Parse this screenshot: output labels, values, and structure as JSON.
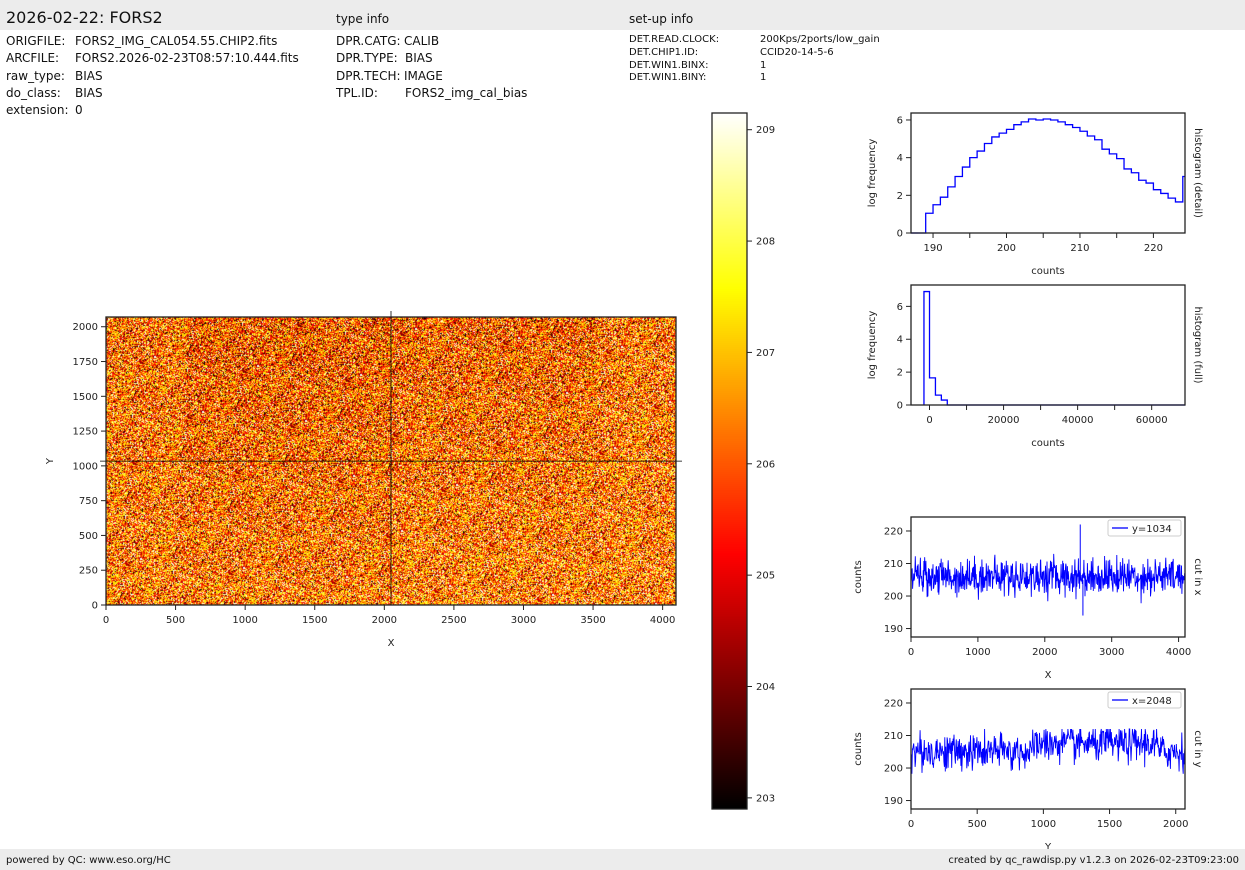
{
  "header": {
    "title": "2026-02-22: FORS2",
    "type_info_label": "type info",
    "setup_info_label": "set-up info"
  },
  "file_info": [
    {
      "key": "ORIGFILE:",
      "value": "FORS2_IMG_CAL054.55.CHIP2.fits"
    },
    {
      "key": "ARCFILE:",
      "value": "FORS2.2026-02-23T08:57:10.444.fits"
    },
    {
      "key": "raw_type:",
      "value": "BIAS"
    },
    {
      "key": "do_class:",
      "value": "BIAS"
    },
    {
      "key": "extension:",
      "value": "0"
    }
  ],
  "type_info": [
    {
      "key": "DPR.CATG:",
      "value": "CALIB"
    },
    {
      "key": "DPR.TYPE:",
      "value": "BIAS"
    },
    {
      "key": "DPR.TECH:",
      "value": "IMAGE"
    },
    {
      "key": "TPL.ID:",
      "value": "FORS2_img_cal_bias"
    }
  ],
  "setup_info": [
    {
      "key": "DET.READ.CLOCK:",
      "value": "200Kps/2ports/low_gain"
    },
    {
      "key": "DET.CHIP1.ID:",
      "value": "CCID20-14-5-6"
    },
    {
      "key": "DET.WIN1.BINX:",
      "value": "1"
    },
    {
      "key": "DET.WIN1.BINY:",
      "value": "1"
    }
  ],
  "footer": {
    "left": "powered by QC: www.eso.org/HC",
    "right": "created by qc_rawdisp.py v1.2.3 on 2026-02-23T09:23:00"
  },
  "colors": {
    "line": "#0000ff",
    "header_bg": "#ececec"
  },
  "chart_data": [
    {
      "type": "heatmap",
      "id": "image",
      "xlabel": "X",
      "ylabel": "Y",
      "xlim": [
        0,
        4096
      ],
      "ylim": [
        0,
        2070
      ],
      "xticks": [
        "0",
        "500",
        "1000",
        "1500",
        "2000",
        "2500",
        "3000",
        "3500",
        "4000"
      ],
      "yticks": [
        "0",
        "250",
        "500",
        "750",
        "1000",
        "1250",
        "1500",
        "1750",
        "2000"
      ],
      "colormap": "hot",
      "crosshair": {
        "x": 2048,
        "y": 1034
      }
    },
    {
      "type": "colorbar",
      "id": "colorbar",
      "range": [
        202.9,
        209.15
      ],
      "ticks": [
        "203",
        "204",
        "205",
        "206",
        "207",
        "208",
        "209"
      ],
      "colormap": "hot"
    },
    {
      "type": "line",
      "id": "hist_detail",
      "title_right": "histogram (detail)",
      "xlabel": "counts",
      "ylabel": "log frequency",
      "xlim": [
        187,
        224.3
      ],
      "ylim": [
        0,
        6.37
      ],
      "xticks": [
        "190",
        "200",
        "210",
        "220"
      ],
      "yticks": [
        "0",
        "2",
        "4",
        "6"
      ],
      "step": true,
      "x": [
        188,
        189,
        190,
        191,
        192,
        193,
        194,
        195,
        196,
        197,
        198,
        199,
        200,
        201,
        202,
        203,
        204,
        205,
        206,
        207,
        208,
        209,
        210,
        211,
        212,
        213,
        214,
        215,
        216,
        217,
        218,
        219,
        220,
        221,
        222,
        223,
        224
      ],
      "y": [
        0,
        1.05,
        1.5,
        1.9,
        2.45,
        3.0,
        3.5,
        4.0,
        4.35,
        4.75,
        5.1,
        5.3,
        5.5,
        5.75,
        5.9,
        6.05,
        6.0,
        6.05,
        6.0,
        5.9,
        5.75,
        5.6,
        5.4,
        5.15,
        4.95,
        4.45,
        4.2,
        3.95,
        3.4,
        3.2,
        2.8,
        2.65,
        2.3,
        2.1,
        1.85,
        1.65,
        3.0
      ]
    },
    {
      "type": "line",
      "id": "hist_full",
      "title_right": "histogram (full)",
      "xlabel": "counts",
      "ylabel": "log frequency",
      "xlim": [
        -5000,
        69000
      ],
      "ylim": [
        0,
        7.3
      ],
      "xticks": [
        "0",
        "20000",
        "40000",
        "60000"
      ],
      "yticks": [
        "0",
        "2",
        "4",
        "6"
      ],
      "step": true,
      "x": [
        -1500,
        0,
        1600,
        3200,
        4800,
        68000
      ],
      "y": [
        6.9,
        1.65,
        0.6,
        0.3,
        0,
        0
      ]
    },
    {
      "type": "line",
      "id": "cut_x",
      "title_right": "cut in x",
      "xlabel": "X",
      "ylabel": "counts",
      "xlim": [
        0,
        4096
      ],
      "ylim": [
        187.4,
        224.3
      ],
      "xticks": [
        "0",
        "1000",
        "2000",
        "3000",
        "4000"
      ],
      "yticks": [
        "190",
        "200",
        "210",
        "220"
      ],
      "series": [
        {
          "name": "y=1034",
          "mean": 206,
          "min": 194,
          "max": 222
        }
      ]
    },
    {
      "type": "line",
      "id": "cut_y",
      "title_right": "cut in y",
      "xlabel": "Y",
      "ylabel": "counts",
      "xlim": [
        0,
        2070
      ],
      "ylim": [
        187.4,
        224.3
      ],
      "xticks": [
        "0",
        "500",
        "1000",
        "1500",
        "2000"
      ],
      "yticks": [
        "190",
        "200",
        "210",
        "220"
      ],
      "series": [
        {
          "name": "x=2048",
          "mean": 205,
          "min": 194,
          "max": 217
        }
      ]
    }
  ]
}
